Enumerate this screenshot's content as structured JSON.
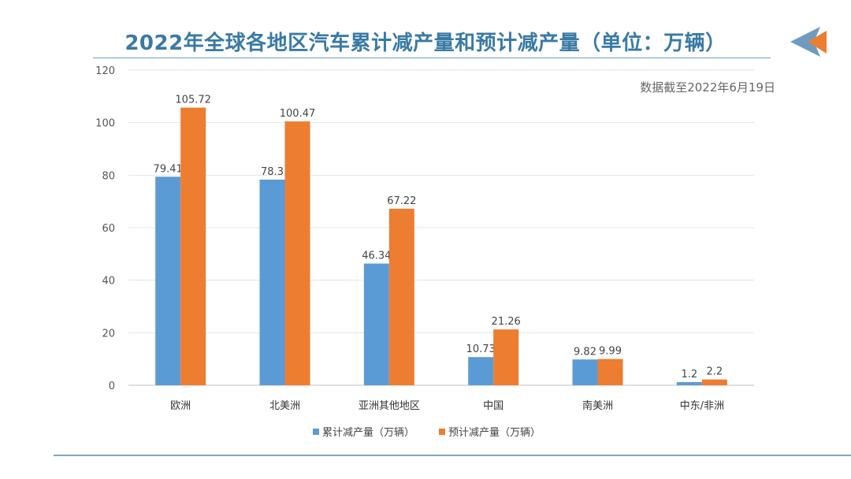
{
  "title": "2022年全球各地区汽车累计减产量和预计减产量（单位：万辆）",
  "note": "数据截至2022年6月19日",
  "colors": {
    "series1": "#5b9bd5",
    "series2": "#ed7d31",
    "title": "#3a7aa5"
  },
  "chart_data": {
    "type": "bar",
    "title": "2022年全球各地区汽车累计减产量和预计减产量（单位：万辆）",
    "categories": [
      "欧洲",
      "北美洲",
      "亚洲其他地区",
      "中国",
      "南美洲",
      "中东/非洲"
    ],
    "series": [
      {
        "name": "累计减产量（万辆）",
        "values": [
          79.41,
          78.3,
          46.34,
          10.73,
          9.82,
          1.2
        ],
        "labels": [
          "79.41",
          "78.3",
          "46.34",
          "10.73",
          "9.82",
          "1.2"
        ]
      },
      {
        "name": "预计减产量（万辆）",
        "values": [
          105.72,
          100.47,
          67.22,
          21.26,
          9.99,
          2.2
        ],
        "labels": [
          "105.72",
          "100.47",
          "67.22",
          "21.26",
          "9.99",
          "2.2"
        ]
      }
    ],
    "yticks": [
      "0",
      "20",
      "40",
      "60",
      "80",
      "100",
      "120"
    ],
    "ylim": [
      0,
      120
    ],
    "grid": true,
    "legend": "bottom"
  }
}
